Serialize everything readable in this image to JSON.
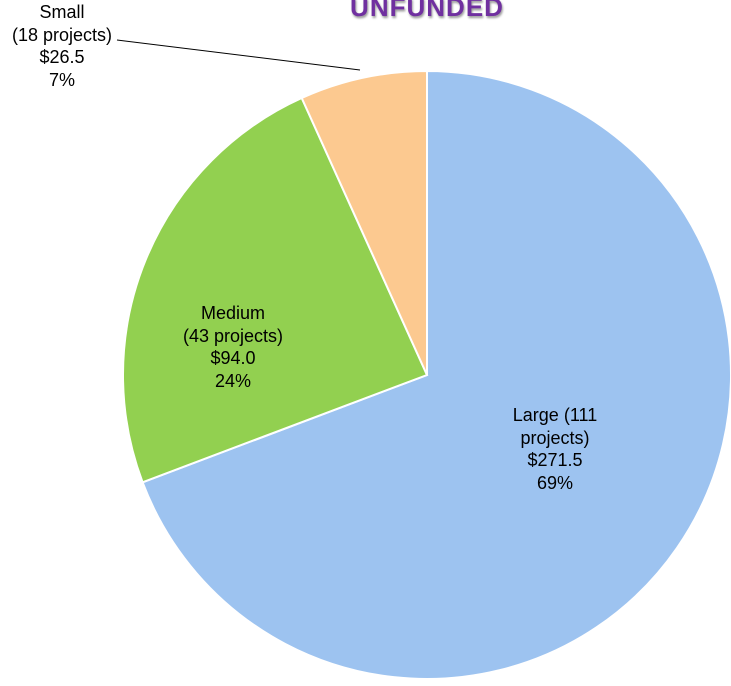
{
  "chart_data": {
    "type": "pie",
    "title": "UNFUNDED",
    "categories": [
      "Large",
      "Medium",
      "Small"
    ],
    "project_labels": [
      "(111 projects)",
      "(43 projects)",
      "(18 projects)"
    ],
    "values": [
      271.5,
      94.0,
      26.5
    ],
    "value_labels": [
      "$271.5",
      "$94.0",
      "$26.5"
    ],
    "percents": [
      69,
      24,
      7
    ],
    "percent_labels": [
      "69%",
      "24%",
      "7%"
    ],
    "colors": [
      "#9dc3f0",
      "#92d050",
      "#fcc990"
    ]
  }
}
